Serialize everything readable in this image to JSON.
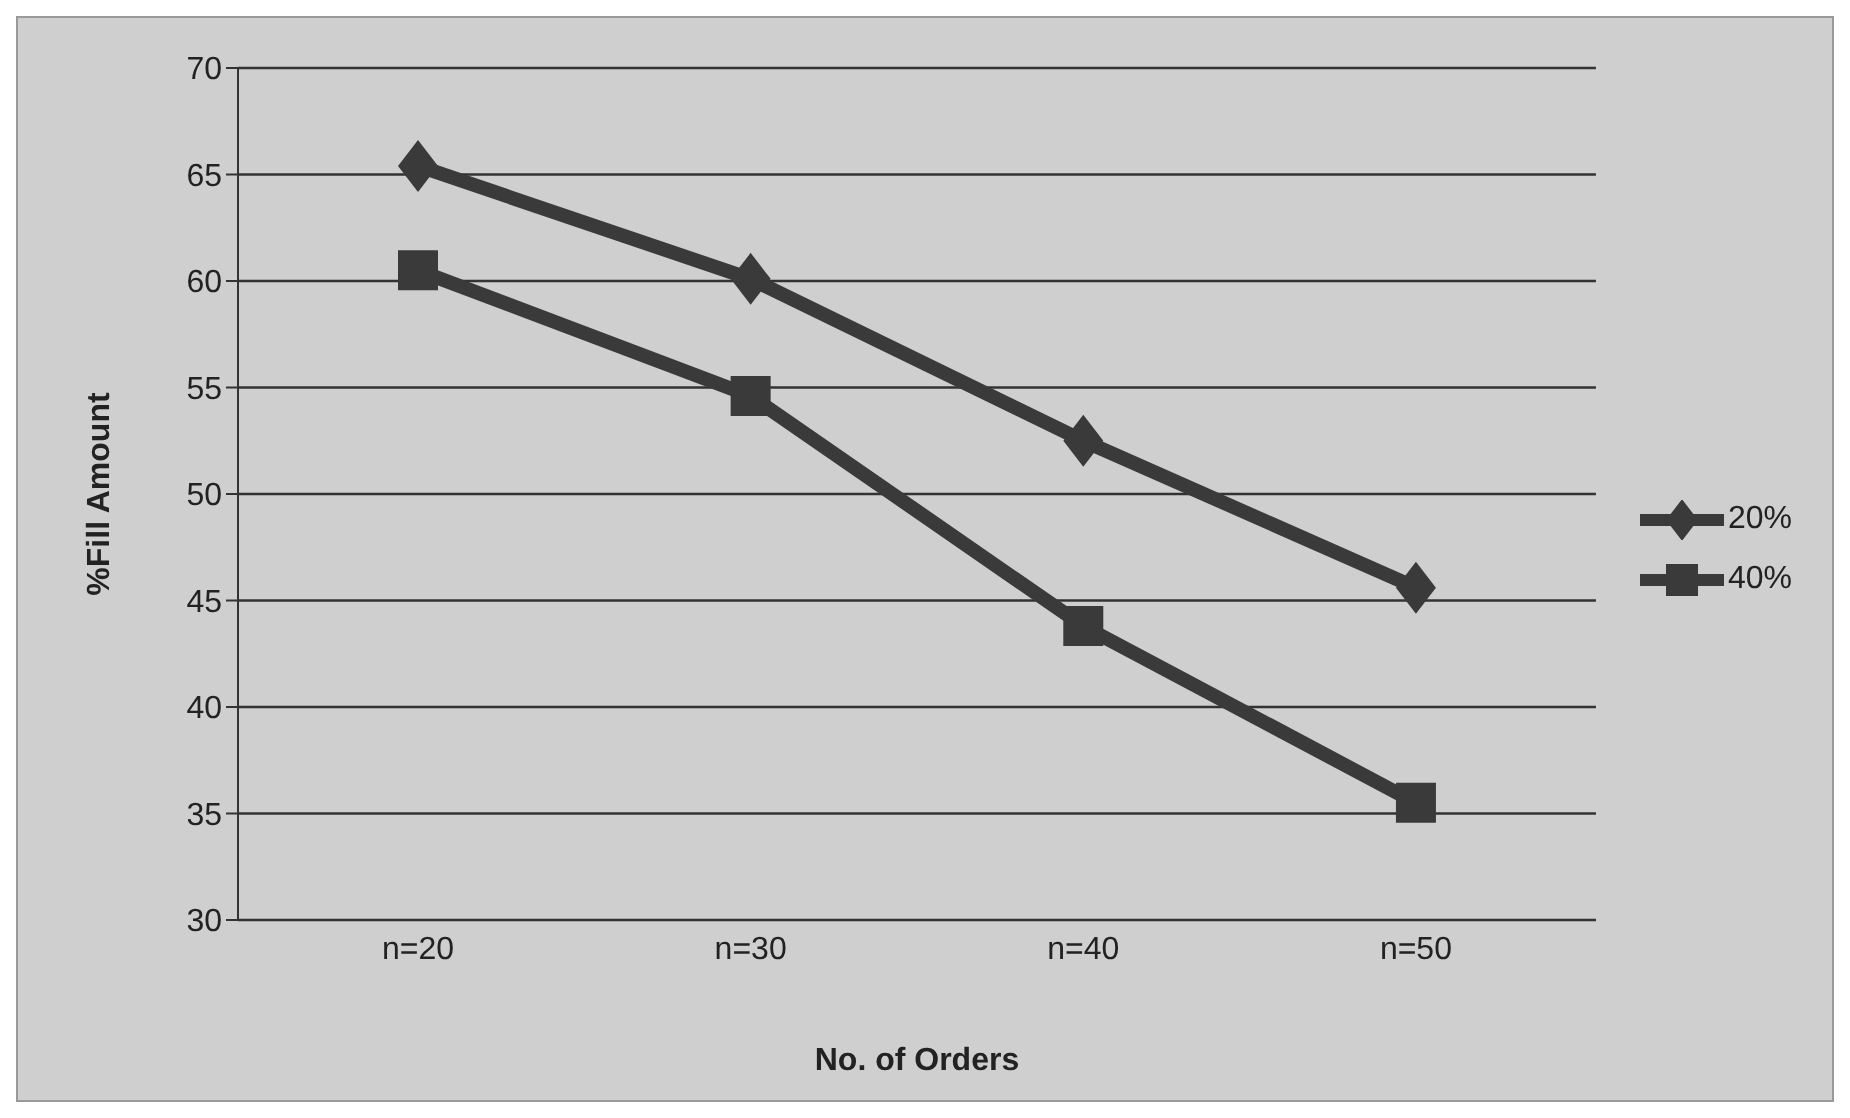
{
  "chart_data": {
    "type": "line",
    "xlabel": "No. of Orders",
    "ylabel": "%Fill Amount",
    "categories": [
      "n=20",
      "n=30",
      "n=40",
      "n=50"
    ],
    "series": [
      {
        "name": "20%",
        "color": "#3a3a3a",
        "marker": "diamond",
        "values": [
          65.4,
          60.1,
          52.5,
          45.6
        ]
      },
      {
        "name": "40%",
        "color": "#3a3a3a",
        "marker": "square",
        "values": [
          60.5,
          54.6,
          43.8,
          35.5
        ]
      }
    ],
    "ylim": [
      30,
      70
    ],
    "yticks": [
      30,
      35,
      40,
      45,
      50,
      55,
      60,
      65,
      70
    ],
    "grid": "y",
    "legend": "right",
    "line_style": "solid"
  }
}
